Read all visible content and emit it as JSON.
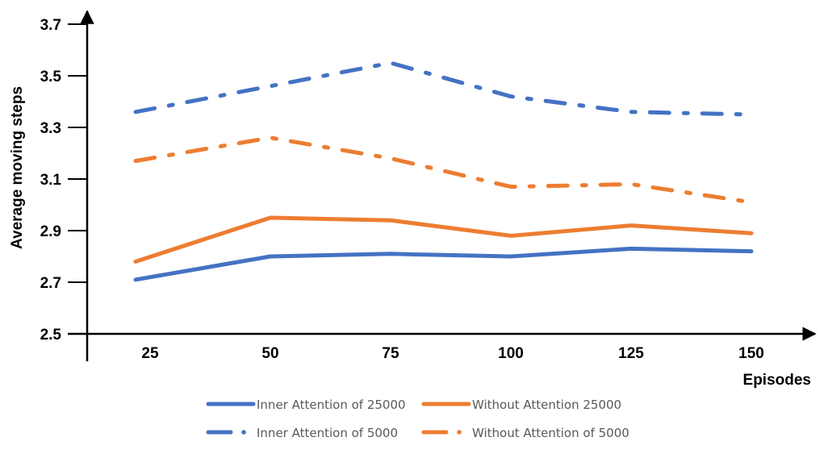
{
  "chart_data": {
    "type": "line",
    "title": "",
    "xlabel": "Episodes",
    "ylabel": "Average moving steps",
    "categories": [
      "25",
      "50",
      "75",
      "100",
      "125",
      "150"
    ],
    "ylim": [
      2.5,
      3.7
    ],
    "yticks": [
      "2.5",
      "2.7",
      "2.9",
      "3.1",
      "3.3",
      "3.5",
      "3.7"
    ],
    "grid": false,
    "legend_position": "bottom",
    "series": [
      {
        "name": "Inner Attention of 25000",
        "values": [
          2.71,
          2.8,
          2.81,
          2.8,
          2.83,
          2.82
        ],
        "color": "#4472C4",
        "style": "solid"
      },
      {
        "name": "Without Attention 25000",
        "values": [
          2.78,
          2.95,
          2.94,
          2.88,
          2.92,
          2.89
        ],
        "color": "#ED7D31",
        "style": "solid"
      },
      {
        "name": "Inner Attention of 5000",
        "values": [
          3.36,
          3.46,
          3.55,
          3.42,
          3.36,
          3.35
        ],
        "color": "#4472C4",
        "style": "dash-dot"
      },
      {
        "name": "Without Attention of 5000",
        "values": [
          3.17,
          3.26,
          3.18,
          3.07,
          3.08,
          3.01
        ],
        "color": "#ED7D31",
        "style": "dash-dot"
      }
    ]
  }
}
